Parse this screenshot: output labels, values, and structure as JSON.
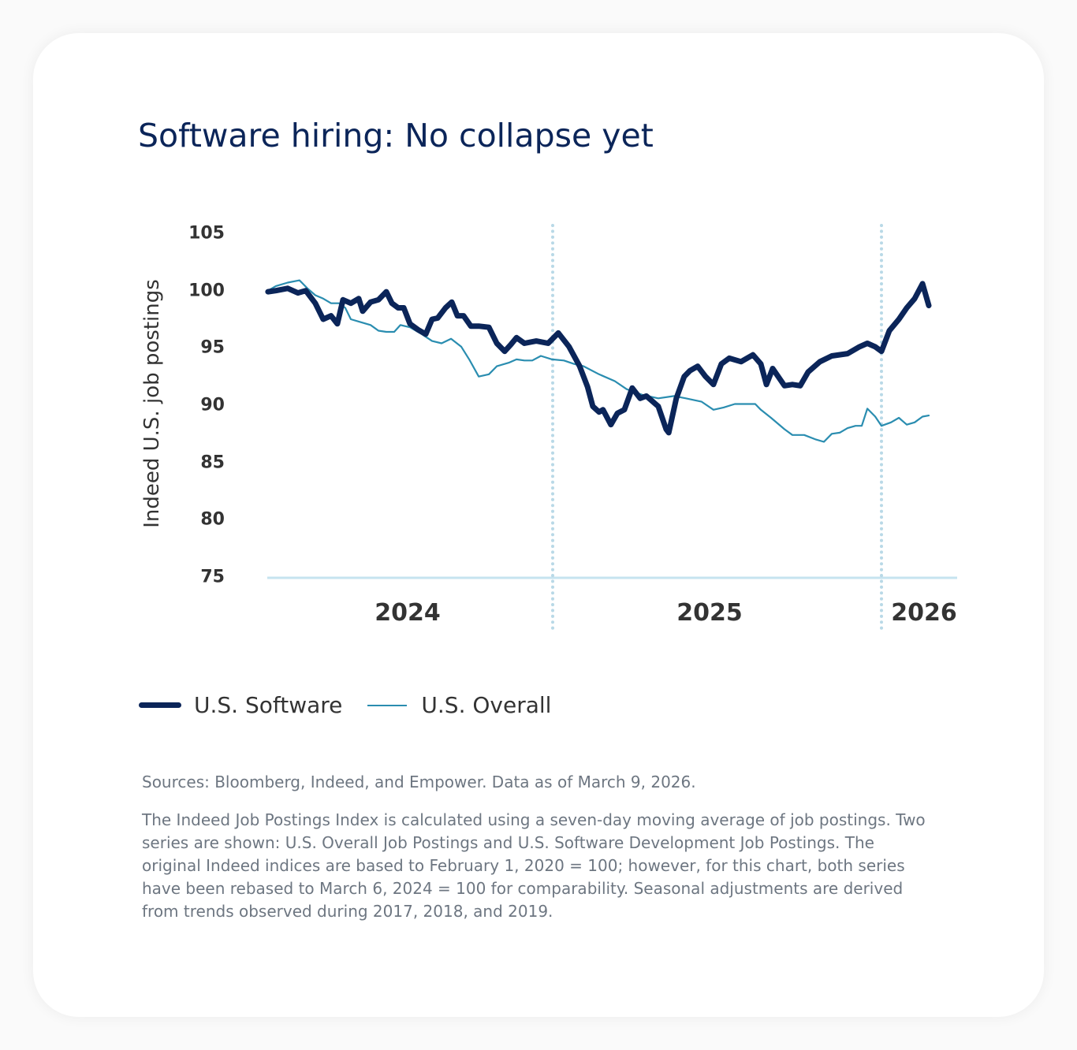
{
  "chart_data": {
    "type": "line",
    "title": "Software hiring: No collapse yet",
    "ylabel": "Indeed U.S. job postings",
    "xlabel": "",
    "ylim": [
      75,
      105
    ],
    "yticks": [
      "105",
      "100",
      "95",
      "90",
      "85",
      "80",
      "75"
    ],
    "xticks": [
      "2024",
      "2025",
      "2026"
    ],
    "year_dividers": [
      2025,
      2026
    ],
    "grid": false,
    "legend_position": "bottom-left",
    "series": [
      {
        "name": "U.S. Software",
        "color": "#0b2559",
        "x": [
          2024.134,
          2024.158,
          2024.194,
          2024.225,
          2024.249,
          2024.278,
          2024.302,
          2024.326,
          2024.345,
          2024.362,
          2024.386,
          2024.41,
          2024.422,
          2024.446,
          2024.47,
          2024.494,
          2024.511,
          2024.53,
          2024.547,
          2024.566,
          2024.59,
          2024.614,
          2024.633,
          2024.65,
          2024.674,
          2024.693,
          2024.71,
          2024.729,
          2024.751,
          2024.775,
          2024.806,
          2024.83,
          2024.854,
          2024.873,
          2024.89,
          2024.914,
          2024.95,
          2024.986,
          2025.017,
          2025.05,
          2025.082,
          2025.106,
          2025.122,
          2025.141,
          2025.153,
          2025.177,
          2025.197,
          2025.218,
          2025.242,
          2025.266,
          2025.285,
          2025.321,
          2025.345,
          2025.353,
          2025.376,
          2025.4,
          2025.417,
          2025.441,
          2025.465,
          2025.489,
          2025.513,
          2025.537,
          2025.573,
          2025.609,
          2025.633,
          2025.65,
          2025.669,
          2025.705,
          2025.729,
          2025.753,
          2025.777,
          2025.813,
          2025.849,
          2025.897,
          2025.933,
          2025.957,
          2025.981,
          2026.0,
          2026.024,
          2026.053,
          2026.077,
          2026.101,
          2026.125,
          2026.144
        ],
        "y": [
          99.9,
          100.0,
          100.2,
          99.8,
          100.0,
          98.9,
          97.5,
          97.8,
          97.1,
          99.2,
          98.9,
          99.3,
          98.2,
          99.0,
          99.2,
          99.9,
          98.9,
          98.5,
          98.5,
          97.1,
          96.6,
          96.2,
          97.5,
          97.6,
          98.5,
          99.0,
          97.8,
          97.8,
          96.9,
          96.9,
          96.8,
          95.4,
          94.7,
          95.3,
          95.9,
          95.4,
          95.6,
          95.4,
          96.3,
          95.1,
          93.4,
          91.6,
          89.9,
          89.4,
          89.6,
          88.3,
          89.3,
          89.6,
          91.5,
          90.6,
          90.8,
          89.9,
          87.9,
          87.6,
          90.6,
          92.5,
          93.0,
          93.4,
          92.5,
          91.8,
          93.6,
          94.1,
          93.8,
          94.4,
          93.6,
          91.8,
          93.2,
          91.7,
          91.8,
          91.7,
          92.9,
          93.8,
          94.3,
          94.5,
          95.1,
          95.4,
          95.1,
          94.7,
          96.5,
          97.5,
          98.5,
          99.3,
          100.6,
          98.7
        ]
      },
      {
        "name": "U.S. Overall",
        "color": "#2a8db0",
        "x": [
          2024.134,
          2024.158,
          2024.194,
          2024.23,
          2024.254,
          2024.278,
          2024.302,
          2024.326,
          2024.35,
          2024.369,
          2024.386,
          2024.41,
          2024.446,
          2024.47,
          2024.494,
          2024.518,
          2024.537,
          2024.566,
          2024.602,
          2024.633,
          2024.662,
          2024.691,
          2024.722,
          2024.746,
          2024.775,
          2024.806,
          2024.83,
          2024.866,
          2024.89,
          2024.914,
          2024.938,
          2024.964,
          2024.998,
          2025.034,
          2025.065,
          2025.094,
          2025.141,
          2025.189,
          2025.225,
          2025.273,
          2025.321,
          2025.369,
          2025.405,
          2025.453,
          2025.489,
          2025.52,
          2025.554,
          2025.585,
          2025.616,
          2025.633,
          2025.664,
          2025.705,
          2025.729,
          2025.765,
          2025.801,
          2025.825,
          2025.849,
          2025.873,
          2025.897,
          2025.921,
          2025.94,
          2025.957,
          2025.981,
          2026.0,
          2026.029,
          2026.053,
          2026.077,
          2026.101,
          2026.125,
          2026.144
        ],
        "y": [
          100.0,
          100.4,
          100.7,
          100.9,
          100.2,
          99.6,
          99.3,
          98.9,
          98.9,
          98.5,
          97.5,
          97.3,
          97.0,
          96.5,
          96.4,
          96.4,
          97.0,
          96.8,
          96.2,
          95.6,
          95.4,
          95.8,
          95.1,
          94.0,
          92.5,
          92.7,
          93.4,
          93.7,
          94.0,
          93.9,
          93.9,
          94.3,
          94.0,
          93.9,
          93.6,
          93.4,
          92.7,
          92.1,
          91.4,
          90.9,
          90.6,
          90.8,
          90.6,
          90.3,
          89.6,
          89.8,
          90.1,
          90.1,
          90.1,
          89.6,
          88.9,
          87.9,
          87.4,
          87.4,
          87.0,
          86.8,
          87.5,
          87.6,
          88.0,
          88.2,
          88.2,
          89.7,
          89.0,
          88.2,
          88.5,
          88.9,
          88.3,
          88.5,
          89.0,
          89.1
        ]
      }
    ]
  },
  "sources": "Sources: Bloomberg, Indeed, and Empower. Data as of March 9, 2026.",
  "note": "The Indeed Job Postings Index is calculated using a seven-day moving average of job postings. Two series are shown: U.S. Overall Job Postings and U.S. Software Development Job Postings. The original Indeed indices are based to February 1, 2020 = 100; however, for this chart, both series have been rebased to March 6, 2024 = 100 for comparability. Seasonal adjustments are derived from trends observed during 2017, 2018, and 2019."
}
